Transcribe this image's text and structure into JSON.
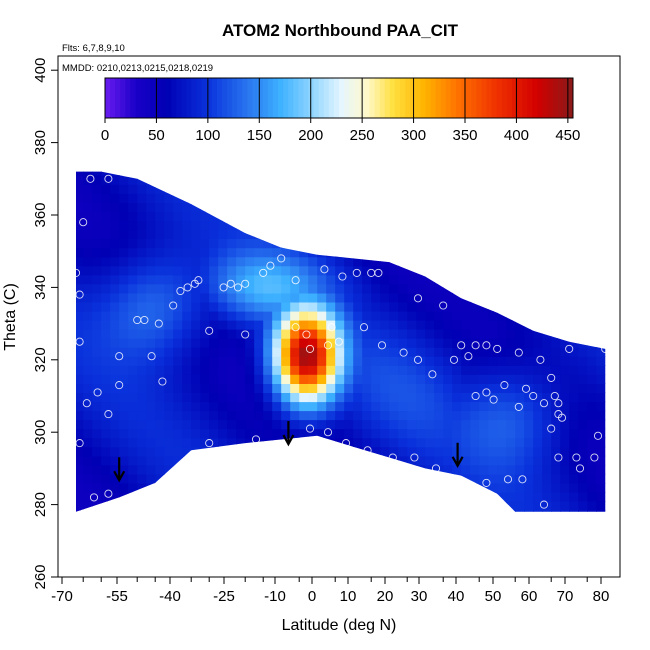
{
  "chart_data": {
    "type": "heatmap",
    "title": "ATOM2 Northbound PAA_CIT",
    "annotations": [
      "Flts: 6,7,8,9,10",
      "MMDD: 0210,0213,0215,0218,0219"
    ],
    "xlabel": "Latitude (deg N)",
    "ylabel": "Theta (C)",
    "xlim": [
      -70,
      85
    ],
    "ylim": [
      260,
      400
    ],
    "xticks": [
      -70,
      -55,
      -40,
      -25,
      -10,
      0,
      10,
      20,
      30,
      40,
      50,
      60,
      70,
      80
    ],
    "yticks": [
      260,
      280,
      300,
      320,
      340,
      360,
      380,
      400
    ],
    "colorbar": {
      "range": [
        0,
        455
      ],
      "ticks": [
        0,
        50,
        100,
        150,
        200,
        250,
        300,
        350,
        400,
        450
      ],
      "colors": [
        {
          "value": 0,
          "color": "#6a1cf0"
        },
        {
          "value": 30,
          "color": "#1a00c8"
        },
        {
          "value": 60,
          "color": "#0000b4"
        },
        {
          "value": 100,
          "color": "#0a32dc"
        },
        {
          "value": 140,
          "color": "#2a78f0"
        },
        {
          "value": 170,
          "color": "#3cb0ff"
        },
        {
          "value": 200,
          "color": "#8cd4ff"
        },
        {
          "value": 230,
          "color": "#e6f6ff"
        },
        {
          "value": 255,
          "color": "#fff8c8"
        },
        {
          "value": 280,
          "color": "#ffe040"
        },
        {
          "value": 310,
          "color": "#ffb400"
        },
        {
          "value": 340,
          "color": "#ff7800"
        },
        {
          "value": 380,
          "color": "#f03200"
        },
        {
          "value": 420,
          "color": "#d20000"
        },
        {
          "value": 455,
          "color": "#8a1a1a"
        }
      ]
    },
    "field": {
      "upper_boundary": [
        [
          -67,
          372
        ],
        [
          -60,
          372
        ],
        [
          -50,
          370
        ],
        [
          -35,
          363
        ],
        [
          -20,
          355
        ],
        [
          -10,
          351
        ],
        [
          0,
          349
        ],
        [
          10,
          348
        ],
        [
          20,
          347
        ],
        [
          30,
          343
        ],
        [
          40,
          337
        ],
        [
          50,
          333
        ],
        [
          60,
          328
        ],
        [
          70,
          325
        ],
        [
          80,
          323
        ]
      ],
      "lower_boundary": [
        [
          -67,
          278
        ],
        [
          -55,
          282
        ],
        [
          -45,
          286
        ],
        [
          -35,
          295
        ],
        [
          -20,
          297
        ],
        [
          0,
          299
        ],
        [
          10,
          296
        ],
        [
          20,
          293
        ],
        [
          30,
          290
        ],
        [
          40,
          288
        ],
        [
          50,
          283
        ],
        [
          55,
          278
        ],
        [
          80,
          278
        ]
      ],
      "blobs": [
        {
          "x": -3,
          "y": 321,
          "sx": 9,
          "sy": 13,
          "value": 440
        },
        {
          "x": 25,
          "y": 312,
          "sx": 22,
          "sy": 18,
          "value": 95
        },
        {
          "x": -45,
          "y": 335,
          "sx": 15,
          "sy": 15,
          "value": 150
        },
        {
          "x": 55,
          "y": 305,
          "sx": 15,
          "sy": 15,
          "value": 130
        },
        {
          "x": -15,
          "y": 340,
          "sx": 18,
          "sy": 10,
          "value": 160
        }
      ],
      "background_value": 70
    },
    "observations": [
      [
        -63,
        370
      ],
      [
        -58,
        370
      ],
      [
        -65,
        358
      ],
      [
        -67,
        344
      ],
      [
        -66,
        338
      ],
      [
        -66,
        325
      ],
      [
        -66,
        297
      ],
      [
        -64,
        308
      ],
      [
        -61,
        311
      ],
      [
        -58,
        305
      ],
      [
        -55,
        313
      ],
      [
        -62,
        282
      ],
      [
        -58,
        283
      ],
      [
        -50,
        331
      ],
      [
        -48,
        331
      ],
      [
        -44,
        330
      ],
      [
        -40,
        335
      ],
      [
        -38,
        339
      ],
      [
        -36,
        340
      ],
      [
        -34,
        341
      ],
      [
        -33,
        342
      ],
      [
        -26,
        340
      ],
      [
        -24,
        341
      ],
      [
        -22,
        340
      ],
      [
        -20,
        341
      ],
      [
        -15,
        344
      ],
      [
        -13,
        346
      ],
      [
        -10,
        348
      ],
      [
        -6,
        342
      ],
      [
        -20,
        327
      ],
      [
        -30,
        328
      ],
      [
        -43,
        314
      ],
      [
        -46,
        321
      ],
      [
        -55,
        321
      ],
      [
        -30,
        297
      ],
      [
        -17,
        298
      ],
      [
        -6,
        329
      ],
      [
        -3,
        327
      ],
      [
        -2,
        323
      ],
      [
        3,
        324
      ],
      [
        4,
        329
      ],
      [
        6,
        325
      ],
      [
        2,
        345
      ],
      [
        7,
        343
      ],
      [
        11,
        344
      ],
      [
        15,
        344
      ],
      [
        17,
        344
      ],
      [
        24,
        347
      ],
      [
        28,
        337
      ],
      [
        35,
        335
      ],
      [
        13,
        329
      ],
      [
        18,
        324
      ],
      [
        24,
        322
      ],
      [
        28,
        320
      ],
      [
        32,
        316
      ],
      [
        38,
        320
      ],
      [
        40,
        324
      ],
      [
        42,
        321
      ],
      [
        44,
        324
      ],
      [
        47,
        324
      ],
      [
        50,
        323
      ],
      [
        56,
        322
      ],
      [
        62,
        320
      ],
      [
        65,
        315
      ],
      [
        70,
        323
      ],
      [
        44,
        310
      ],
      [
        47,
        311
      ],
      [
        49,
        309
      ],
      [
        52,
        313
      ],
      [
        56,
        307
      ],
      [
        58,
        312
      ],
      [
        60,
        310
      ],
      [
        63,
        308
      ],
      [
        66,
        310
      ],
      [
        67,
        308
      ],
      [
        67,
        305
      ],
      [
        68,
        304
      ],
      [
        65,
        301
      ],
      [
        -2,
        301
      ],
      [
        3,
        300
      ],
      [
        8,
        297
      ],
      [
        14,
        295
      ],
      [
        21,
        293
      ],
      [
        27,
        293
      ],
      [
        33,
        290
      ],
      [
        47,
        286
      ],
      [
        53,
        287
      ],
      [
        57,
        287
      ],
      [
        67,
        293
      ],
      [
        72,
        293
      ],
      [
        73,
        290
      ],
      [
        77,
        293
      ],
      [
        78,
        299
      ],
      [
        80,
        323
      ],
      [
        63,
        280
      ],
      [
        -40,
        285
      ]
    ],
    "arrows": [
      [
        -55,
        287
      ],
      [
        -8,
        297
      ],
      [
        39,
        291
      ]
    ]
  }
}
